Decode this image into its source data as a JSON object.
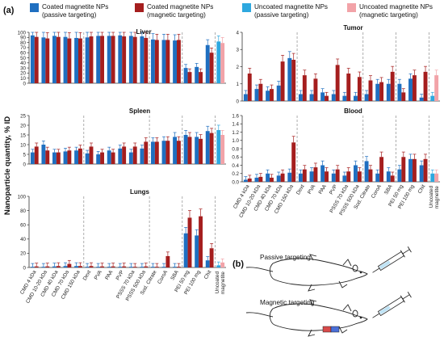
{
  "panel_a_label": "(a)",
  "panel_b_label": "(b)",
  "legend": [
    {
      "line1": "Coated magnetite NPs",
      "line2": "(passive targeting)",
      "color": "#1f6fc0"
    },
    {
      "line1": "Coated magnetite NPs",
      "line2": "(magnetic targeting)",
      "color": "#a51e1e"
    },
    {
      "line1": "Uncoated magnetite NPs",
      "line2": "(passive targeting)",
      "color": "#2ea8df"
    },
    {
      "line1": "Uncoated magnetite NPs",
      "line2": "(magnetic targeting)",
      "color": "#f2a3a8"
    }
  ],
  "y_axis_label": "Nanoparticle quantity, % ID",
  "diagram": {
    "passive_label": "Passive targeting",
    "magnetic_label": "Magnetic targeting"
  },
  "chart_data": [
    {
      "type": "bar",
      "title": "Liver",
      "categories": [
        "CMD 4 kDa",
        "CMD 10-20 kDa",
        "CMD 40 kDa",
        "CMD 70 kDa",
        "CMD 150 kDa",
        "Dext",
        "PVA",
        "PAA",
        "PVP",
        "PSSS 70 kDa",
        "PSSS 500 kDa",
        "Sod. Citrate",
        "CoroA",
        "SBA",
        "PEI 50 mg",
        "PEI 100 mg",
        "Chit",
        "Uncoated magnetite"
      ],
      "ylim": [
        0,
        100
      ],
      "yticks": [
        "0",
        "10",
        "20",
        "30",
        "40",
        "50",
        "60",
        "70",
        "80",
        "90",
        "100"
      ],
      "series": [
        {
          "name": "Coated magnetite NPs (passive targeting)",
          "values": [
            94,
            90,
            93,
            91,
            89,
            90,
            93,
            93,
            94,
            93,
            92,
            86,
            85,
            84,
            30,
            32,
            75,
            null
          ]
        },
        {
          "name": "Coated magnetite NPs (magnetic targeting)",
          "values": [
            91,
            88,
            91,
            88,
            88,
            92,
            93,
            93,
            92,
            91,
            89,
            85,
            85,
            85,
            22,
            22,
            60,
            null
          ]
        },
        {
          "name": "Uncoated magnetite NPs (passive targeting)",
          "values": [
            null,
            null,
            null,
            null,
            null,
            null,
            null,
            null,
            null,
            null,
            null,
            null,
            null,
            null,
            null,
            null,
            null,
            82
          ]
        },
        {
          "name": "Uncoated magnetite NPs (magnetic targeting)",
          "values": [
            null,
            null,
            null,
            null,
            null,
            null,
            null,
            null,
            null,
            null,
            null,
            null,
            null,
            null,
            null,
            null,
            null,
            79
          ]
        }
      ]
    },
    {
      "type": "bar",
      "title": "Spleen",
      "categories": [
        "CMD 4 kDa",
        "CMD 10-20 kDa",
        "CMD 40 kDa",
        "CMD 70 kDa",
        "CMD 150 kDa",
        "Dext",
        "PVA",
        "PAA",
        "PVP",
        "PSSS 70 kDa",
        "PSSS 500 kDa",
        "Sod. Citrate",
        "CoroA",
        "SBA",
        "PEI 50 mg",
        "PEI 100 mg",
        "Chit",
        "Uncoated magnetite"
      ],
      "ylim": [
        0,
        25
      ],
      "yticks": [
        "0",
        "5",
        "10",
        "15",
        "20",
        "25"
      ],
      "series": [
        {
          "name": "Coated magnetite NPs (passive targeting)",
          "values": [
            6,
            10,
            6,
            6.5,
            7,
            5.5,
            5,
            7,
            8,
            6,
            8,
            11.5,
            12,
            14,
            15,
            14,
            17,
            null
          ]
        },
        {
          "name": "Coated magnetite NPs (magnetic targeting)",
          "values": [
            9,
            7,
            6,
            7,
            8,
            9,
            6,
            6,
            9,
            9,
            11.5,
            11.5,
            12,
            12,
            14,
            13,
            16,
            null
          ]
        },
        {
          "name": "Uncoated magnetite NPs (passive targeting)",
          "values": [
            null,
            null,
            null,
            null,
            null,
            null,
            null,
            null,
            null,
            null,
            null,
            null,
            null,
            null,
            null,
            null,
            null,
            17.5
          ]
        },
        {
          "name": "Uncoated magnetite NPs (magnetic targeting)",
          "values": [
            null,
            null,
            null,
            null,
            null,
            null,
            null,
            null,
            null,
            null,
            null,
            null,
            null,
            null,
            null,
            null,
            null,
            15
          ]
        }
      ]
    },
    {
      "type": "bar",
      "title": "Lungs",
      "categories": [
        "CMD 4 kDa",
        "CMD 10-20 kDa",
        "CMD 40 kDa",
        "CMD 70 kDa",
        "CMD 150 kDa",
        "Dext",
        "PVA",
        "PAA",
        "PVP",
        "PSSS 70 kDa",
        "PSSS 500 kDa",
        "Sod. Citrate",
        "CoroA",
        "SBA",
        "PEI 50 mg",
        "PEI 100 mg",
        "Chit",
        "Uncoated magnetite"
      ],
      "ylim": [
        0,
        100
      ],
      "yticks": [
        "0",
        "20",
        "40",
        "60",
        "80",
        "100"
      ],
      "series": [
        {
          "name": "Coated magnetite NPs (passive targeting)",
          "values": [
            1,
            1,
            1.5,
            2,
            2,
            1,
            1,
            1,
            1,
            1,
            1,
            1,
            1,
            1,
            48,
            45,
            10,
            null
          ]
        },
        {
          "name": "Coated magnetite NPs (magnetic targeting)",
          "values": [
            1.5,
            1.5,
            2,
            5,
            2,
            2,
            1.5,
            1.5,
            1.5,
            1,
            1.5,
            1,
            16,
            1,
            70,
            72,
            27,
            null
          ]
        },
        {
          "name": "Uncoated magnetite NPs (passive targeting)",
          "values": [
            null,
            null,
            null,
            null,
            null,
            null,
            null,
            null,
            null,
            null,
            null,
            null,
            null,
            null,
            null,
            null,
            null,
            3
          ]
        },
        {
          "name": "Uncoated magnetite NPs (magnetic targeting)",
          "values": [
            null,
            null,
            null,
            null,
            null,
            null,
            null,
            null,
            null,
            null,
            null,
            null,
            null,
            null,
            null,
            null,
            null,
            7
          ]
        }
      ]
    },
    {
      "type": "bar",
      "title": "Tumor",
      "categories": [
        "CMD 4 kDa",
        "CMD 10-20 kDa",
        "CMD 40 kDa",
        "CMD 70 kDa",
        "CMD 150 kDa",
        "Dext",
        "PVA",
        "PAA",
        "PVP",
        "PSSS 70 kDa",
        "PSSS 500 kDa",
        "Sod. Citrate",
        "CoroA",
        "SBA",
        "PEI 50 mg",
        "PEI 100 mg",
        "Chit",
        "Uncoated magnetite"
      ],
      "ylim": [
        0,
        4
      ],
      "yticks": [
        "0",
        "1",
        "2",
        "3",
        "4"
      ],
      "series": [
        {
          "name": "Coated magnetite NPs (passive targeting)",
          "values": [
            0.4,
            0.7,
            0.6,
            0.9,
            2.5,
            0.4,
            0.4,
            0.5,
            0.4,
            0.3,
            0.3,
            0.4,
            1.0,
            1.0,
            1.0,
            1.3,
            0.2,
            null
          ]
        },
        {
          "name": "Coated magnetite NPs (magnetic targeting)",
          "values": [
            1.6,
            1.0,
            0.7,
            2.3,
            2.4,
            1.5,
            1.3,
            0.3,
            2.1,
            1.6,
            1.4,
            1.2,
            1.1,
            1.7,
            0.5,
            1.5,
            1.7,
            null
          ]
        },
        {
          "name": "Uncoated magnetite NPs (passive targeting)",
          "values": [
            null,
            null,
            null,
            null,
            null,
            null,
            null,
            null,
            null,
            null,
            null,
            null,
            null,
            null,
            null,
            null,
            null,
            0.3
          ]
        },
        {
          "name": "Uncoated magnetite NPs (magnetic targeting)",
          "values": [
            null,
            null,
            null,
            null,
            null,
            null,
            null,
            null,
            null,
            null,
            null,
            null,
            null,
            null,
            null,
            null,
            null,
            1.5
          ]
        }
      ]
    },
    {
      "type": "bar",
      "title": "Blood",
      "categories": [
        "CMD 4 kDa",
        "CMD 10-20 kDa",
        "CMD 40 kDa",
        "CMD 70 kDa",
        "CMD 150 kDa",
        "Dext",
        "PVA",
        "PAA",
        "PVP",
        "PSSS 70 kDa",
        "PSSS 500 kDa",
        "Sod. Citrate",
        "CoroA",
        "SBA",
        "PEI 50 mg",
        "PEI 100 mg",
        "Chit",
        "Uncoated magnetite"
      ],
      "ylim": [
        0,
        1.6
      ],
      "yticks": [
        "0.0",
        "0.2",
        "0.4",
        "0.6",
        "0.8",
        "1.0",
        "1.2",
        "1.4",
        "1.6"
      ],
      "series": [
        {
          "name": "Coated magnetite NPs (passive targeting)",
          "values": [
            0.05,
            0.1,
            0.2,
            0.15,
            0.22,
            0.2,
            0.25,
            0.4,
            0.2,
            0.15,
            0.4,
            0.5,
            0.2,
            0.25,
            0.3,
            0.55,
            0.4,
            null
          ]
        },
        {
          "name": "Coated magnetite NPs (magnetic targeting)",
          "values": [
            0.08,
            0.12,
            0.1,
            0.2,
            0.95,
            0.3,
            0.35,
            0.25,
            0.3,
            0.25,
            0.25,
            0.3,
            0.6,
            0.15,
            0.6,
            0.55,
            0.55,
            null
          ]
        },
        {
          "name": "Uncoated magnetite NPs (passive targeting)",
          "values": [
            null,
            null,
            null,
            null,
            null,
            null,
            null,
            null,
            null,
            null,
            null,
            null,
            null,
            null,
            null,
            null,
            null,
            0.2
          ]
        },
        {
          "name": "Uncoated magnetite NPs (magnetic targeting)",
          "values": [
            null,
            null,
            null,
            null,
            null,
            null,
            null,
            null,
            null,
            null,
            null,
            null,
            null,
            null,
            null,
            null,
            null,
            0.2
          ]
        }
      ]
    }
  ]
}
